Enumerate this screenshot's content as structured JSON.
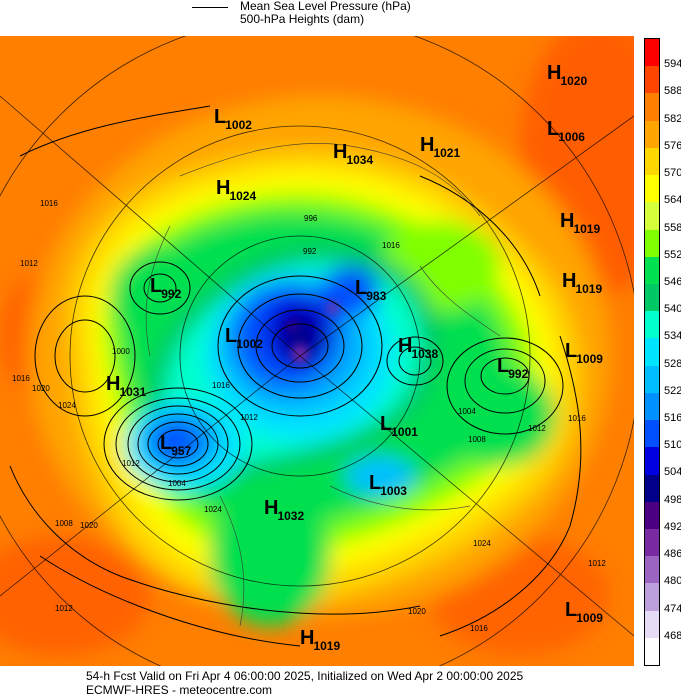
{
  "legend": {
    "mslp_label": "Mean Sea Level Pressure (hPa)",
    "heights_label": "500-hPa Heights (dam)"
  },
  "colorbar": {
    "labels": [
      "594",
      "588",
      "582",
      "576",
      "570",
      "564",
      "558",
      "552",
      "546",
      "540",
      "534",
      "528",
      "522",
      "516",
      "510",
      "504",
      "498",
      "492",
      "486",
      "480",
      "474",
      "468"
    ],
    "colors": [
      "#ff0000",
      "#ff4500",
      "#ff7f00",
      "#ffa500",
      "#ffd700",
      "#ffff00",
      "#d4ff3a",
      "#7fff00",
      "#00e050",
      "#00c864",
      "#00ffcc",
      "#00e5ff",
      "#00bfff",
      "#0090ff",
      "#0050ff",
      "#0000e0",
      "#00008b",
      "#4b0082",
      "#7a2aa0",
      "#9a64c0",
      "#bca0dc",
      "#e6dcf5",
      "#ffffff"
    ]
  },
  "systems": [
    {
      "type": "H",
      "value": "1020"
    },
    {
      "type": "L",
      "value": "1002"
    },
    {
      "type": "L",
      "value": "1006"
    },
    {
      "type": "H",
      "value": "1034"
    },
    {
      "type": "H",
      "value": "1021"
    },
    {
      "type": "H",
      "value": "1024"
    },
    {
      "type": "H",
      "value": "1019"
    },
    {
      "type": "L",
      "value": "992"
    },
    {
      "type": "L",
      "value": "983"
    },
    {
      "type": "H",
      "value": "1019"
    },
    {
      "type": "L",
      "value": "1002"
    },
    {
      "type": "H",
      "value": "1038"
    },
    {
      "type": "L",
      "value": "1009"
    },
    {
      "type": "L",
      "value": "992"
    },
    {
      "type": "H",
      "value": "1031"
    },
    {
      "type": "L",
      "value": "1001"
    },
    {
      "type": "L",
      "value": "957"
    },
    {
      "type": "L",
      "value": "1003"
    },
    {
      "type": "H",
      "value": "1032"
    },
    {
      "type": "L",
      "value": "1009"
    },
    {
      "type": "H",
      "value": "1019"
    }
  ],
  "isobar_labels": [
    "1016",
    "1012",
    "1008",
    "1000",
    "1020",
    "1024",
    "1016",
    "1012",
    "1004",
    "1024",
    "1020",
    "1012",
    "1016",
    "1004",
    "1008",
    "1012",
    "1016",
    "1024",
    "1020",
    "1016",
    "1012",
    "1016",
    "996",
    "992",
    "1012"
  ],
  "footer": {
    "line1": "54-h Fcst Valid on Fri Apr  4 06:00:00 2025, Initialized on Wed Apr  2 00:00:00 2025",
    "line2": "ECMWF-HRES  - meteocentre.com"
  }
}
